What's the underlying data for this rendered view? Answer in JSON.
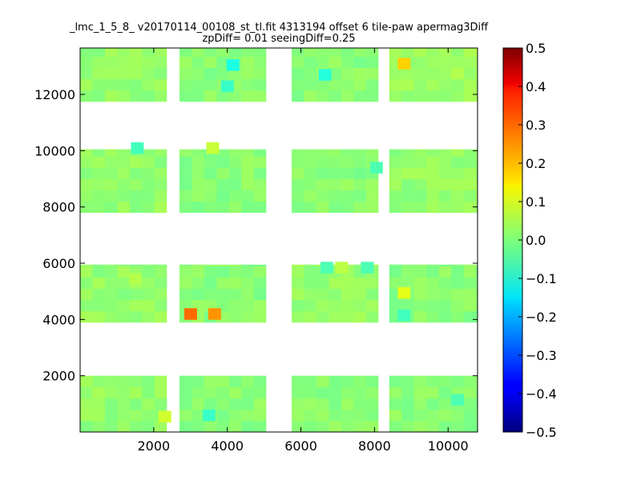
{
  "chart_data": {
    "type": "heatmap",
    "title": "_lmc_1_5_8_ v20170114_00108_st_tl.fit 4313194 offset 6 tile-paw apermag3Diff",
    "subtitle": "zpDiff= 0.01 seeingDiff=0.25",
    "xlabel": "",
    "ylabel": "",
    "xlim": [
      0,
      10800
    ],
    "ylim": [
      0,
      13650
    ],
    "x_ticks": [
      "2000",
      "4000",
      "6000",
      "8000",
      "10000"
    ],
    "x_tick_values": [
      2000,
      4000,
      6000,
      8000,
      10000
    ],
    "y_ticks": [
      "2000",
      "4000",
      "6000",
      "8000",
      "10000",
      "12000"
    ],
    "y_tick_values": [
      2000,
      4000,
      6000,
      8000,
      10000,
      12000
    ],
    "colorbar": {
      "colormap": "jet",
      "range": [
        -0.5,
        0.5
      ],
      "ticks": [
        "0.5",
        "0.4",
        "0.3",
        "0.2",
        "0.1",
        "0.0",
        "−0.1",
        "−0.2",
        "−0.3",
        "−0.4",
        "−0.5"
      ],
      "tick_values": [
        0.5,
        0.4,
        0.3,
        0.2,
        0.1,
        0.0,
        -0.1,
        -0.2,
        -0.3,
        -0.4,
        -0.5
      ]
    },
    "cell_size": [
      337,
      400
    ],
    "blocks": [
      {
        "x_range": [
          0,
          2350
        ],
        "y_range": [
          0,
          2000
        ],
        "value": 0.02
      },
      {
        "x_range": [
          2700,
          5050
        ],
        "y_range": [
          0,
          2000
        ],
        "value": 0.01
      },
      {
        "x_range": [
          5750,
          8100
        ],
        "y_range": [
          0,
          2000
        ],
        "value": 0.01
      },
      {
        "x_range": [
          8400,
          10800
        ],
        "y_range": [
          0,
          2000
        ],
        "value": 0.01
      },
      {
        "x_range": [
          0,
          2350
        ],
        "y_range": [
          3900,
          5950
        ],
        "value": 0.02
      },
      {
        "x_range": [
          2700,
          5050
        ],
        "y_range": [
          3900,
          5950
        ],
        "value": 0.01
      },
      {
        "x_range": [
          5750,
          8100
        ],
        "y_range": [
          3900,
          5950
        ],
        "value": 0.02
      },
      {
        "x_range": [
          8400,
          10800
        ],
        "y_range": [
          3900,
          5950
        ],
        "value": 0.01
      },
      {
        "x_range": [
          0,
          2350
        ],
        "y_range": [
          7800,
          10050
        ],
        "value": 0.02
      },
      {
        "x_range": [
          2700,
          5050
        ],
        "y_range": [
          7800,
          10050
        ],
        "value": 0.01
      },
      {
        "x_range": [
          5750,
          8100
        ],
        "y_range": [
          7800,
          10050
        ],
        "value": 0.01
      },
      {
        "x_range": [
          8400,
          10800
        ],
        "y_range": [
          7800,
          10050
        ],
        "value": 0.02
      },
      {
        "x_range": [
          0,
          2350
        ],
        "y_range": [
          11750,
          13650
        ],
        "value": 0.02
      },
      {
        "x_range": [
          2700,
          5050
        ],
        "y_range": [
          11750,
          13650
        ],
        "value": 0.01
      },
      {
        "x_range": [
          5750,
          8100
        ],
        "y_range": [
          11750,
          13650
        ],
        "value": 0.01
      },
      {
        "x_range": [
          8400,
          10800
        ],
        "y_range": [
          11750,
          13650
        ],
        "value": 0.03
      }
    ],
    "notable_cells": [
      {
        "x": 3000,
        "y": 4200,
        "value": 0.27
      },
      {
        "x": 3650,
        "y": 4200,
        "value": 0.23
      },
      {
        "x": 8800,
        "y": 13100,
        "value": 0.17
      },
      {
        "x": 8800,
        "y": 4950,
        "value": 0.1
      },
      {
        "x": 2300,
        "y": 550,
        "value": 0.08
      },
      {
        "x": 3600,
        "y": 10100,
        "value": 0.07
      },
      {
        "x": 7100,
        "y": 5850,
        "value": 0.06
      },
      {
        "x": 1500,
        "y": 5450,
        "value": 0.05
      },
      {
        "x": 4150,
        "y": 13050,
        "value": -0.1
      },
      {
        "x": 6650,
        "y": 12700,
        "value": -0.09
      },
      {
        "x": 4000,
        "y": 12300,
        "value": -0.07
      },
      {
        "x": 3500,
        "y": 600,
        "value": -0.07
      },
      {
        "x": 1550,
        "y": 10100,
        "value": -0.06
      },
      {
        "x": 8800,
        "y": 4150,
        "value": -0.06
      },
      {
        "x": 6700,
        "y": 5850,
        "value": -0.05
      },
      {
        "x": 7800,
        "y": 5850,
        "value": -0.05
      },
      {
        "x": 8050,
        "y": 9400,
        "value": -0.05
      },
      {
        "x": 10250,
        "y": 1150,
        "value": -0.05
      }
    ]
  }
}
